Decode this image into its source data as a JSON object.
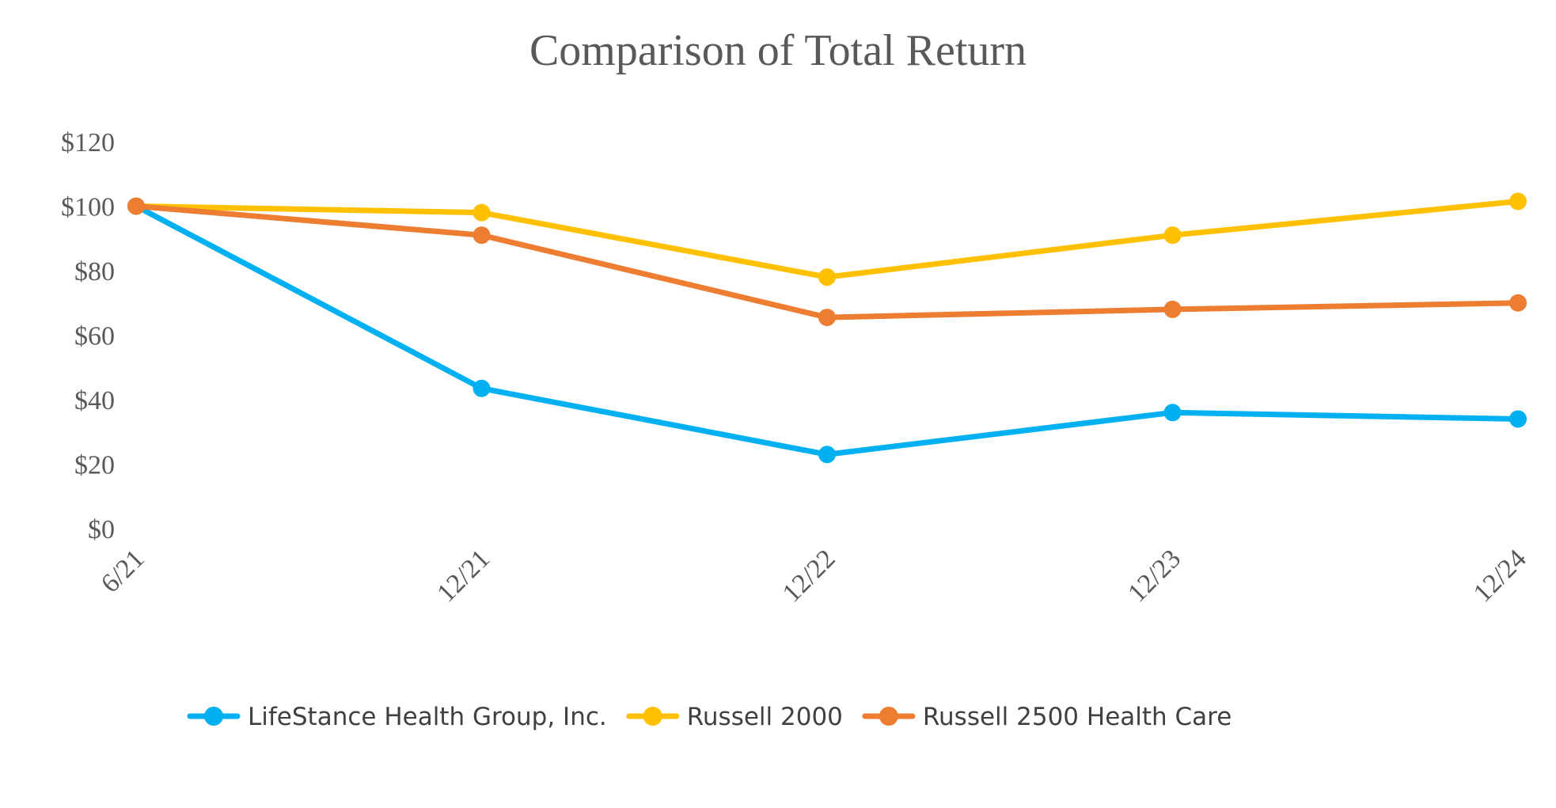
{
  "chart_data": {
    "type": "line",
    "title": "Comparison of Total Return",
    "categories": [
      "6/21",
      "12/21",
      "12/22",
      "12/23",
      "12/24"
    ],
    "ylim": [
      0,
      120
    ],
    "yticks": [
      0,
      20,
      40,
      60,
      80,
      100,
      120
    ],
    "ytick_labels": [
      "$0",
      "$20",
      "$40",
      "$60",
      "$80",
      "$100",
      "$120"
    ],
    "xlabel": "",
    "ylabel": "",
    "grid": false,
    "legend_position": "bottom",
    "series": [
      {
        "name": "LifeStance Health Group, Inc.",
        "color": "#00B0F0",
        "values": [
          100,
          43.5,
          23,
          36,
          34
        ]
      },
      {
        "name": "Russell 2000",
        "color": "#FFC000",
        "values": [
          100,
          98,
          78,
          91,
          101.5
        ]
      },
      {
        "name": "Russell 2500 Health Care",
        "color": "#ED7D31",
        "values": [
          100,
          91,
          65.5,
          68,
          70
        ]
      }
    ]
  }
}
